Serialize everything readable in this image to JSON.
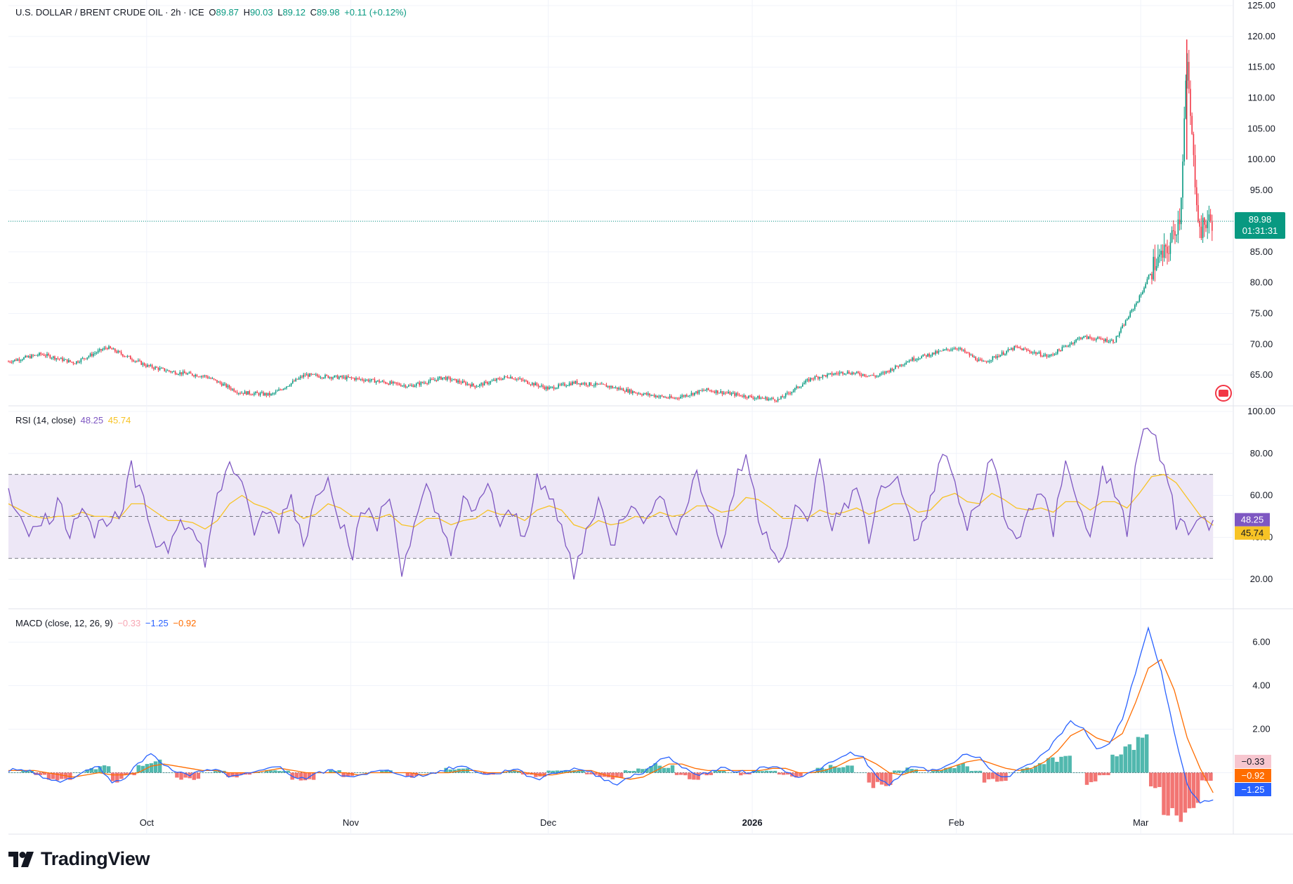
{
  "header": {
    "symbol": "U.S. DOLLAR / BRENT CRUDE OIL · 2h · ICE",
    "open_label": "O",
    "open": "89.87",
    "high_label": "H",
    "high": "90.03",
    "low_label": "L",
    "low": "89.12",
    "close_label": "C",
    "close": "89.98",
    "change": "+0.11 (+0.12%)"
  },
  "price_tag": {
    "price": "89.98",
    "countdown": "01:31:31"
  },
  "rsi_legend": {
    "title": "RSI (14, close)",
    "value": "48.25",
    "ma": "45.74"
  },
  "macd_legend": {
    "title": "MACD (close, 12, 26, 9)",
    "hist": "−0.33",
    "macd": "−1.25",
    "signal": "−0.92"
  },
  "brand": {
    "name": "TradingView"
  },
  "colors": {
    "up": "#089981",
    "down": "#f23645",
    "rsi": "#7e57c2",
    "rsi_ma": "#f7c325",
    "macd": "#2962ff",
    "signal": "#ff6d00",
    "band": "#ede7f6",
    "grid": "#f0f3fa"
  },
  "chart_data": [
    {
      "type": "candlestick",
      "title": "U.S. DOLLAR / BRENT CRUDE OIL · 2h · ICE",
      "ylim": [
        60,
        125
      ],
      "y_ticks": [
        "65.00",
        "70.00",
        "75.00",
        "80.00",
        "85.00",
        "90.00",
        "95.00",
        "100.00",
        "105.00",
        "110.00",
        "115.00",
        "120.00",
        "125.00"
      ],
      "x_tick_labels": [
        "Oct",
        "Nov",
        "Dec",
        "2026",
        "Feb",
        "Mar"
      ],
      "series": [
        {
          "name": "Close",
          "x": [
            "2025-09-10",
            "2025-09-15",
            "2025-09-20",
            "2025-09-25",
            "2025-10-01",
            "2025-10-05",
            "2025-10-10",
            "2025-10-15",
            "2025-10-20",
            "2025-10-25",
            "2025-11-01",
            "2025-11-05",
            "2025-11-10",
            "2025-11-15",
            "2025-11-20",
            "2025-11-25",
            "2025-12-01",
            "2025-12-05",
            "2025-12-10",
            "2025-12-15",
            "2025-12-20",
            "2025-12-25",
            "2026-01-01",
            "2026-01-05",
            "2026-01-10",
            "2026-01-15",
            "2026-01-20",
            "2026-01-25",
            "2026-02-01",
            "2026-02-05",
            "2026-02-10",
            "2026-02-15",
            "2026-02-20",
            "2026-02-25",
            "2026-03-01",
            "2026-03-03",
            "2026-03-05",
            "2026-03-07",
            "2026-03-08",
            "2026-03-09",
            "2026-03-10",
            "2026-03-11",
            "2026-03-12"
          ],
          "values": [
            67.2,
            68.4,
            67.0,
            69.5,
            66.5,
            65.5,
            64.8,
            62.2,
            61.8,
            65.0,
            64.5,
            64.0,
            63.2,
            64.6,
            63.2,
            64.8,
            62.8,
            63.8,
            63.2,
            62.0,
            61.2,
            62.6,
            61.4,
            61.0,
            64.5,
            65.5,
            64.8,
            67.5,
            69.5,
            67.0,
            69.5,
            68.0,
            71.2,
            70.5,
            78.0,
            83.0,
            85.0,
            91.0,
            116.0,
            100.0,
            88.0,
            90.0,
            89.98
          ]
        }
      ]
    },
    {
      "type": "line",
      "title": "RSI (14, close)",
      "ylim": [
        10,
        100
      ],
      "y_ticks": [
        "20.00",
        "40.00",
        "60.00",
        "80.00",
        "100.00"
      ],
      "bands": [
        30,
        50,
        70
      ],
      "series": [
        {
          "name": "RSI",
          "values": [
            60,
            52,
            42,
            48,
            56,
            44,
            58,
            42,
            50,
            46,
            72,
            55,
            38,
            36,
            52,
            42,
            30,
            58,
            78,
            62,
            44,
            52,
            46,
            60,
            38,
            58,
            72,
            48,
            34,
            54,
            46,
            60,
            26,
            44,
            62,
            48,
            36,
            56,
            50,
            68,
            44,
            52,
            38,
            72,
            58,
            44,
            22,
            42,
            60,
            34,
            52,
            58,
            46,
            64,
            40,
            56,
            70,
            54,
            36,
            62,
            80,
            50,
            38,
            30,
            52,
            48,
            74,
            44,
            56,
            62,
            40,
            64,
            70,
            56,
            36,
            58,
            80,
            66,
            44,
            56,
            82,
            48,
            38,
            54,
            60,
            42,
            80,
            56,
            38,
            76,
            58,
            44,
            86,
            92,
            72,
            48,
            40,
            46,
            48.25
          ]
        },
        {
          "name": "MA",
          "values": [
            56,
            53,
            50,
            49,
            50,
            50,
            52,
            50,
            50,
            49,
            56,
            56,
            52,
            48,
            48,
            47,
            44,
            48,
            56,
            60,
            56,
            54,
            51,
            53,
            49,
            51,
            56,
            54,
            50,
            50,
            49,
            51,
            46,
            45,
            49,
            49,
            46,
            48,
            49,
            53,
            51,
            51,
            48,
            53,
            55,
            53,
            46,
            44,
            48,
            46,
            47,
            50,
            49,
            52,
            50,
            51,
            55,
            55,
            52,
            53,
            59,
            58,
            54,
            49,
            49,
            49,
            53,
            51,
            52,
            54,
            51,
            53,
            56,
            56,
            52,
            53,
            59,
            61,
            57,
            56,
            61,
            58,
            54,
            53,
            54,
            52,
            57,
            57,
            53,
            57,
            57,
            54,
            61,
            69,
            70,
            66,
            58,
            50,
            45.74
          ]
        }
      ]
    },
    {
      "type": "line",
      "title": "MACD (close, 12, 26, 9)",
      "ylim": [
        -2.5,
        7.5
      ],
      "y_ticks": [
        "0.00",
        "2.00",
        "4.00",
        "6.00"
      ],
      "series": [
        {
          "name": "MACD",
          "values": [
            0.1,
            0.2,
            0.0,
            -0.3,
            -0.4,
            -0.2,
            0.1,
            0.3,
            -0.5,
            -0.2,
            0.4,
            0.9,
            0.4,
            0.0,
            -0.1,
            0.1,
            0.2,
            -0.2,
            -0.1,
            0.0,
            0.2,
            0.3,
            -0.2,
            -0.3,
            0.0,
            0.1,
            -0.2,
            -0.1,
            0.0,
            0.1,
            0.0,
            -0.2,
            -0.1,
            0.0,
            0.2,
            0.3,
            0.1,
            -0.1,
            0.0,
            0.2,
            -0.1,
            -0.3,
            0.0,
            0.1,
            0.2,
            0.0,
            -0.3,
            -0.5,
            -0.2,
            0.0,
            0.5,
            0.7,
            0.3,
            -0.1,
            0.0,
            0.2,
            0.1,
            0.0,
            0.2,
            0.3,
            0.1,
            -0.2,
            0.0,
            0.3,
            0.6,
            0.9,
            0.7,
            -0.2,
            -0.6,
            0.0,
            0.3,
            0.1,
            0.2,
            0.5,
            0.9,
            0.7,
            0.0,
            -0.2,
            0.1,
            0.4,
            0.9,
            1.6,
            2.4,
            2.0,
            1.1,
            1.3,
            2.5,
            4.6,
            6.6,
            4.6,
            1.8,
            -0.6,
            -1.4,
            -1.25
          ]
        },
        {
          "name": "Signal",
          "values": [
            0.1,
            0.1,
            0.1,
            0.0,
            -0.1,
            -0.2,
            -0.1,
            0.0,
            -0.1,
            -0.1,
            0.0,
            0.3,
            0.4,
            0.3,
            0.2,
            0.1,
            0.1,
            0.0,
            0.0,
            0.0,
            0.1,
            0.2,
            0.1,
            0.0,
            0.0,
            0.0,
            0.0,
            -0.1,
            0.0,
            0.0,
            0.0,
            0.0,
            -0.1,
            0.0,
            0.0,
            0.1,
            0.1,
            0.0,
            0.0,
            0.1,
            0.0,
            -0.1,
            -0.1,
            0.0,
            0.1,
            0.1,
            -0.1,
            -0.2,
            -0.3,
            -0.2,
            0.1,
            0.4,
            0.4,
            0.2,
            0.1,
            0.1,
            0.1,
            0.1,
            0.1,
            0.2,
            0.2,
            0.0,
            0.0,
            0.1,
            0.3,
            0.6,
            0.7,
            0.4,
            0.0,
            -0.1,
            0.1,
            0.1,
            0.1,
            0.3,
            0.5,
            0.6,
            0.4,
            0.2,
            0.1,
            0.2,
            0.5,
            1.0,
            1.7,
            2.0,
            1.6,
            1.4,
            1.8,
            3.2,
            4.8,
            5.2,
            3.8,
            1.6,
            0.2,
            -0.92
          ]
        },
        {
          "name": "Histogram",
          "values": [
            0.0,
            0.1,
            -0.1,
            -0.3,
            -0.3,
            0.0,
            0.2,
            0.3,
            -0.4,
            -0.1,
            0.4,
            0.6,
            0.0,
            -0.3,
            -0.3,
            0.0,
            0.1,
            -0.2,
            -0.1,
            0.0,
            0.1,
            0.1,
            -0.3,
            -0.3,
            0.0,
            0.1,
            -0.2,
            0.0,
            0.0,
            0.1,
            0.0,
            -0.2,
            0.0,
            0.0,
            0.2,
            0.2,
            0.0,
            -0.1,
            0.0,
            0.1,
            -0.1,
            -0.2,
            0.1,
            0.1,
            0.1,
            -0.1,
            -0.2,
            -0.3,
            0.1,
            0.2,
            0.4,
            0.3,
            -0.1,
            -0.3,
            -0.1,
            0.1,
            0.0,
            -0.1,
            0.1,
            0.1,
            -0.1,
            -0.2,
            0.0,
            0.2,
            0.3,
            0.3,
            0.0,
            -0.6,
            -0.6,
            0.1,
            0.2,
            0.0,
            0.1,
            0.2,
            0.4,
            0.1,
            -0.4,
            -0.4,
            0.0,
            0.2,
            0.4,
            0.6,
            0.7,
            0.0,
            -0.5,
            -0.1,
            0.7,
            1.4,
            1.8,
            -0.6,
            -2.0,
            -2.2,
            -1.6,
            -0.33
          ]
        }
      ]
    }
  ]
}
